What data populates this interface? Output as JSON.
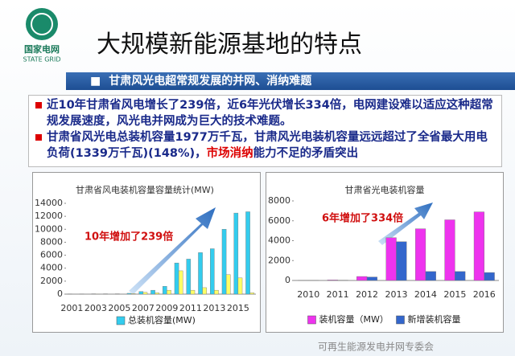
{
  "logo": {
    "name": "国家电网",
    "name_en": "STATE GRID"
  },
  "title": "大规模新能源基地的特点",
  "section": "甘肃风光电超常规发展的并网、消纳难题",
  "bullets": [
    [
      "近10年甘肃省风电增长了239倍，近6年光伏增长334倍，电网建设难以适应这种超常规发展速度，风光电并网成为巨大的技术难题。"
    ],
    [
      "甘肃省风光电总装机容量1977万千瓦，甘肃风光电装机容量远远超过了全省最大用电负荷(1339万千瓦)(148%)，",
      "市场消纳",
      "能力不足的矛盾突出"
    ]
  ],
  "watermark": "可再生能源发电并网专委会",
  "chart_data": [
    {
      "type": "bar",
      "title": "甘肃省风电装机容量容量统计(MW)",
      "annotation": "10年增加了239倍",
      "categories": [
        "2001",
        null,
        "2003",
        null,
        "2005",
        null,
        "2007",
        null,
        "2009",
        null,
        "2011",
        null,
        "2013",
        null,
        "2015",
        null
      ],
      "series": [
        {
          "name": "总装机容量(MW)",
          "color": "#33ccee",
          "values": [
            40,
            40,
            50,
            50,
            50,
            130,
            400,
            600,
            1200,
            4800,
            5400,
            6400,
            7000,
            10000,
            12500,
            12700
          ]
        },
        {
          "color": "#ffff66",
          "values": [
            0,
            0,
            10,
            0,
            0,
            80,
            270,
            200,
            600,
            3600,
            600,
            1000,
            600,
            3000,
            2500,
            200
          ]
        }
      ],
      "ylim": [
        0,
        14000
      ],
      "yticks": [
        0,
        2000,
        4000,
        6000,
        8000,
        10000,
        12000,
        14000
      ],
      "grid": false,
      "legend": "bottom"
    },
    {
      "type": "bar",
      "title": "甘肃省光电装机容量",
      "annotation": "6年增加了334倍",
      "categories": [
        "2010",
        "2011",
        "2012",
        "2013",
        "2014",
        "2015",
        "2016"
      ],
      "series": [
        {
          "name": "装机容量（MW）",
          "color": "#ee33ee",
          "values": [
            20,
            50,
            400,
            4300,
            5200,
            6100,
            6900
          ]
        },
        {
          "name": "新增装机容量",
          "color": "#3366cc",
          "values": [
            20,
            30,
            350,
            3900,
            900,
            900,
            800
          ]
        }
      ],
      "ylim": [
        0,
        8000
      ],
      "yticks": [
        0,
        2000,
        4000,
        6000,
        8000
      ],
      "grid": false,
      "legend": "bottom"
    }
  ]
}
